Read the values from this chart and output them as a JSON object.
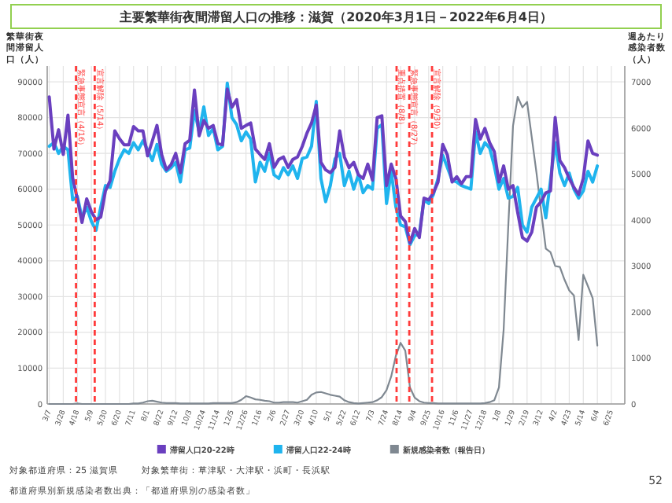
{
  "chart_data": {
    "type": "line",
    "title": "主要繁華街夜間滞留人口の推移：滋賀（2020年3月1日－2022年6月4日）",
    "ylabel": "繁華街夜間滞留人口（人）",
    "y2label": "週あたり感染者数（人）",
    "x": [
      "2020-03-07",
      "2020-03-14",
      "2020-03-21",
      "2020-03-28",
      "2020-04-04",
      "2020-04-11",
      "2020-04-18",
      "2020-04-25",
      "2020-05-02",
      "2020-05-09",
      "2020-05-16",
      "2020-05-23",
      "2020-05-30",
      "2020-06-06",
      "2020-06-13",
      "2020-06-20",
      "2020-06-27",
      "2020-07-04",
      "2020-07-11",
      "2020-07-18",
      "2020-07-25",
      "2020-08-01",
      "2020-08-08",
      "2020-08-15",
      "2020-08-22",
      "2020-08-29",
      "2020-09-05",
      "2020-09-12",
      "2020-09-19",
      "2020-09-26",
      "2020-10-03",
      "2020-10-10",
      "2020-10-17",
      "2020-10-24",
      "2020-10-31",
      "2020-11-07",
      "2020-11-14",
      "2020-11-21",
      "2020-11-28",
      "2020-12-05",
      "2020-12-12",
      "2020-12-19",
      "2020-12-26",
      "2021-01-02",
      "2021-01-09",
      "2021-01-16",
      "2021-01-23",
      "2021-01-30",
      "2021-02-06",
      "2021-02-13",
      "2021-02-20",
      "2021-02-27",
      "2021-03-06",
      "2021-03-13",
      "2021-03-20",
      "2021-03-27",
      "2021-04-03",
      "2021-04-10",
      "2021-04-17",
      "2021-04-24",
      "2021-05-01",
      "2021-05-08",
      "2021-05-15",
      "2021-05-22",
      "2021-05-29",
      "2021-06-05",
      "2021-06-12",
      "2021-06-19",
      "2021-06-26",
      "2021-07-03",
      "2021-07-10",
      "2021-07-17",
      "2021-07-24",
      "2021-07-31",
      "2021-08-07",
      "2021-08-14",
      "2021-08-21",
      "2021-08-28",
      "2021-09-04",
      "2021-09-11",
      "2021-09-18",
      "2021-09-25",
      "2021-10-02",
      "2021-10-09",
      "2021-10-16",
      "2021-10-23",
      "2021-10-30",
      "2021-11-06",
      "2021-11-13",
      "2021-11-20",
      "2021-11-27",
      "2021-12-04",
      "2021-12-11",
      "2021-12-18",
      "2021-12-25",
      "2022-01-01",
      "2022-01-08",
      "2022-01-15",
      "2022-01-22",
      "2022-01-29",
      "2022-02-05",
      "2022-02-12",
      "2022-02-19",
      "2022-02-26",
      "2022-03-05",
      "2022-03-12",
      "2022-03-19",
      "2022-03-26",
      "2022-04-02",
      "2022-04-09",
      "2022-04-16",
      "2022-04-23",
      "2022-04-30",
      "2022-05-07",
      "2022-05-14",
      "2022-05-21",
      "2022-05-28",
      "2022-06-04"
    ],
    "series": [
      {
        "name": "滞留人口20-22時",
        "color": "#6a3fbf",
        "values": [
          85800,
          71200,
          76600,
          69700,
          80700,
          63200,
          57300,
          50700,
          57300,
          53700,
          51500,
          52200,
          59500,
          62400,
          76300,
          74100,
          72400,
          72400,
          77500,
          76300,
          76300,
          69300,
          73400,
          77800,
          69700,
          65400,
          66800,
          70000,
          64600,
          72700,
          73700,
          87700,
          74900,
          79200,
          77000,
          77800,
          72700,
          72400,
          88000,
          82900,
          85000,
          77000,
          77800,
          78500,
          71200,
          69700,
          68300,
          72700,
          66100,
          68300,
          69000,
          66100,
          68300,
          69000,
          71900,
          75600,
          78500,
          83500,
          67500,
          65400,
          64600,
          66100,
          76300,
          69000,
          66000,
          67500,
          64000,
          63000,
          67000,
          62500,
          80000,
          80500,
          61000,
          67000,
          63000,
          52500,
          51000,
          45000,
          49000,
          46500,
          57500,
          57000,
          59000,
          62000,
          72500,
          69500,
          62000,
          63500,
          61500,
          63500,
          63500,
          79500,
          74000,
          77000,
          73000,
          70500,
          62000,
          66500,
          60000,
          61000,
          53500,
          46500,
          45500,
          48000,
          55000,
          56500,
          59000,
          59500,
          80000,
          68000,
          66000,
          63000,
          60500,
          58500,
          63000,
          73500,
          70000,
          69500
        ]
      },
      {
        "name": "滞留人口22-24時",
        "color": "#1fb4ee",
        "values": [
          72000,
          73000,
          70000,
          72000,
          71000,
          57000,
          58000,
          52000,
          55000,
          51000,
          48500,
          55000,
          61000,
          60500,
          65000,
          68500,
          71000,
          70000,
          73000,
          71000,
          73500,
          71000,
          68000,
          72500,
          67000,
          65000,
          66000,
          67500,
          62000,
          71000,
          71500,
          82000,
          76000,
          83000,
          75000,
          77000,
          71000,
          72000,
          89600,
          80000,
          78000,
          73500,
          76000,
          74000,
          62000,
          67500,
          65000,
          70000,
          64000,
          63000,
          66000,
          64000,
          66500,
          63000,
          68500,
          69000,
          72000,
          84500,
          63000,
          56500,
          61000,
          68500,
          70000,
          61000,
          65000,
          60000,
          64000,
          59000,
          61000,
          60000,
          77000,
          78000,
          56000,
          65000,
          55000,
          50000,
          49500,
          44500,
          47000,
          47500,
          57000,
          56000,
          58500,
          63000,
          69500,
          66000,
          62500,
          62000,
          61000,
          60500,
          60000,
          76000,
          70000,
          73000,
          71500,
          66500,
          60000,
          63000,
          57500,
          58000,
          60500,
          50000,
          48000,
          55000,
          57500,
          60000,
          52000,
          62500,
          73000,
          64500,
          61000,
          64500,
          60000,
          57500,
          59500,
          65000,
          62000,
          66500
        ]
      },
      {
        "name": "新規感染者数（報告日）",
        "color": "#7f8891",
        "axis": "y2",
        "values": [
          0,
          0,
          0,
          0,
          0,
          0,
          10,
          0,
          0,
          0,
          0,
          0,
          0,
          0,
          0,
          0,
          0,
          0,
          10,
          10,
          30,
          60,
          70,
          50,
          30,
          20,
          20,
          20,
          10,
          10,
          10,
          10,
          10,
          10,
          10,
          20,
          20,
          20,
          20,
          20,
          40,
          90,
          170,
          140,
          100,
          90,
          70,
          60,
          30,
          30,
          40,
          40,
          40,
          30,
          60,
          90,
          200,
          250,
          260,
          230,
          200,
          180,
          160,
          80,
          40,
          20,
          10,
          20,
          30,
          40,
          80,
          150,
          300,
          600,
          1050,
          1330,
          1160,
          360,
          140,
          60,
          30,
          20,
          20,
          10,
          10,
          10,
          10,
          10,
          10,
          10,
          10,
          10,
          10,
          20,
          40,
          80,
          360,
          1620,
          3890,
          6050,
          6680,
          6450,
          6570,
          5800,
          5030,
          4200,
          3380,
          3300,
          3000,
          2980,
          2700,
          2470,
          2360,
          1390,
          2810,
          2560,
          2300,
          1270
        ]
      }
    ],
    "xlim": [
      "2020-03-04",
      "2022-07-15"
    ],
    "xticks": [
      {
        "value": "2020-03-07",
        "label": "3/7"
      },
      {
        "value": "2020-03-28",
        "label": "3/28"
      },
      {
        "value": "2020-04-18",
        "label": "4/18"
      },
      {
        "value": "2020-05-09",
        "label": "5/9"
      },
      {
        "value": "2020-05-30",
        "label": "5/30"
      },
      {
        "value": "2020-06-20",
        "label": "6/20"
      },
      {
        "value": "2020-07-11",
        "label": "7/11"
      },
      {
        "value": "2020-08-01",
        "label": "8/1"
      },
      {
        "value": "2020-08-22",
        "label": "8/22"
      },
      {
        "value": "2020-09-12",
        "label": "9/12"
      },
      {
        "value": "2020-10-03",
        "label": "10/3"
      },
      {
        "value": "2020-10-24",
        "label": "10/24"
      },
      {
        "value": "2020-11-14",
        "label": "11/14"
      },
      {
        "value": "2020-12-05",
        "label": "12/5"
      },
      {
        "value": "2020-12-26",
        "label": "12/26"
      },
      {
        "value": "2021-01-16",
        "label": "1/16"
      },
      {
        "value": "2021-02-06",
        "label": "2/6"
      },
      {
        "value": "2021-02-27",
        "label": "2/27"
      },
      {
        "value": "2021-03-20",
        "label": "3/20"
      },
      {
        "value": "2021-04-10",
        "label": "4/10"
      },
      {
        "value": "2021-05-01",
        "label": "5/1"
      },
      {
        "value": "2021-05-22",
        "label": "5/22"
      },
      {
        "value": "2021-06-12",
        "label": "6/12"
      },
      {
        "value": "2021-07-03",
        "label": "7/3"
      },
      {
        "value": "2021-07-24",
        "label": "7/24"
      },
      {
        "value": "2021-08-14",
        "label": "8/14"
      },
      {
        "value": "2021-09-04",
        "label": "9/4"
      },
      {
        "value": "2021-09-25",
        "label": "9/25"
      },
      {
        "value": "2021-10-16",
        "label": "10/16"
      },
      {
        "value": "2021-11-06",
        "label": "11/6"
      },
      {
        "value": "2021-11-27",
        "label": "11/27"
      },
      {
        "value": "2021-12-18",
        "label": "12/18"
      },
      {
        "value": "2022-01-08",
        "label": "1/8"
      },
      {
        "value": "2022-01-29",
        "label": "1/29"
      },
      {
        "value": "2022-02-19",
        "label": "2/19"
      },
      {
        "value": "2022-03-12",
        "label": "3/12"
      },
      {
        "value": "2022-04-02",
        "label": "4/2"
      },
      {
        "value": "2022-04-23",
        "label": "4/23"
      },
      {
        "value": "2022-05-14",
        "label": "5/14"
      },
      {
        "value": "2022-06-04",
        "label": "6/4"
      },
      {
        "value": "2022-06-25",
        "label": "6/25"
      }
    ],
    "ylim": [
      0,
      94400
    ],
    "yticks": [
      0,
      10000,
      20000,
      30000,
      40000,
      50000,
      60000,
      70000,
      80000,
      90000
    ],
    "y2lim": [
      0,
      7350
    ],
    "y2ticks": [
      0,
      1000,
      2000,
      3000,
      4000,
      5000,
      6000,
      7000
    ],
    "grid": true,
    "legend": "bottom",
    "ref_lines": [
      {
        "axis": "x",
        "value": "2020-04-16",
        "label": "緊急事態宣言（4/16）",
        "color": "#ff3b3b",
        "line_style": "dashed"
      },
      {
        "axis": "x",
        "value": "2020-05-14",
        "label": "宣言解除（5/14）",
        "color": "#ff3b3b",
        "line_style": "dashed"
      },
      {
        "axis": "x",
        "value": "2021-08-08",
        "label": "重点措置（8/8）",
        "color": "#ff3b3b",
        "line_style": "dashed"
      },
      {
        "axis": "x",
        "value": "2021-08-27",
        "label": "緊急事態宣言（8/27）",
        "color": "#ff3b3b",
        "line_style": "dashed"
      },
      {
        "axis": "x",
        "value": "2021-09-30",
        "label": "宣言解除（9/30）",
        "color": "#ff3b3b",
        "line_style": "dashed"
      }
    ],
    "annotations": [
      "対象都道府県：25 滋賀県",
      "対象繁華街：草津駅・大津駅・浜町・長浜駅",
      "都道府県別新規感染者数出典：「都道府県別の感染者数」",
      "52"
    ]
  }
}
